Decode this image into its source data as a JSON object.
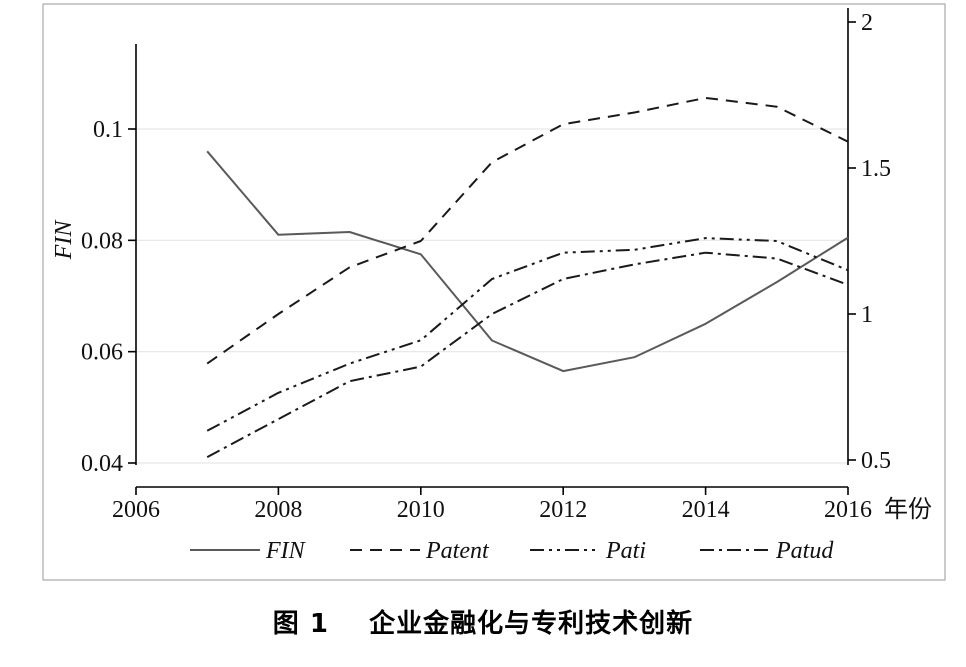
{
  "chart_data": {
    "type": "line",
    "categories": [
      "2007",
      "2008",
      "2009",
      "2010",
      "2011",
      "2012",
      "2013",
      "2014",
      "2015",
      "2016"
    ],
    "x": [
      2007,
      2008,
      2009,
      2010,
      2011,
      2012,
      2013,
      2014,
      2015,
      2016
    ],
    "xlim": [
      2006,
      2016
    ],
    "x_ticks": [
      "2006",
      "2008",
      "2010",
      "2012",
      "2014",
      "2016"
    ],
    "x_unit": "年份",
    "ylabel": "FIN",
    "ylim": [
      0.04,
      0.115
    ],
    "y_ticks": [
      "0.04",
      "0.06",
      "0.08",
      "0.1"
    ],
    "y2lim": [
      0.5,
      2.0
    ],
    "y2_ticks": [
      "0.5",
      "1",
      "1.5",
      "2"
    ],
    "grid": true,
    "legend_position": "bottom",
    "series": [
      {
        "name": "FIN",
        "axis": "left",
        "style": "solid",
        "color": "#5a5a5a",
        "values": [
          0.096,
          0.081,
          0.0815,
          0.0775,
          0.062,
          0.0565,
          0.059,
          0.065,
          0.0725,
          0.0805
        ]
      },
      {
        "name": "Patent",
        "axis": "right",
        "style": "dash",
        "color": "#1a1a1a",
        "values": [
          0.83,
          1.0,
          1.16,
          1.25,
          1.52,
          1.65,
          1.69,
          1.74,
          1.71,
          1.59
        ]
      },
      {
        "name": "Pati",
        "axis": "right",
        "style": "dash-dot-dot",
        "color": "#1a1a1a",
        "values": [
          0.6,
          0.73,
          0.83,
          0.91,
          1.12,
          1.21,
          1.22,
          1.26,
          1.25,
          1.15
        ]
      },
      {
        "name": "Patud",
        "axis": "right",
        "style": "dash-dot",
        "color": "#1a1a1a",
        "values": [
          0.51,
          0.64,
          0.77,
          0.82,
          1.0,
          1.12,
          1.17,
          1.21,
          1.19,
          1.1
        ]
      }
    ]
  },
  "caption": {
    "label": "图 1",
    "text": "企业金融化与专利技术创新"
  }
}
